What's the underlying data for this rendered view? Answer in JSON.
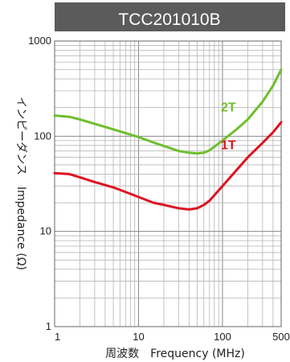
{
  "chart_data": {
    "type": "line",
    "title": "TCC201010B",
    "xlabel": "周波数　Frequency (MHz)",
    "ylabel": "インピーダンス　Impedance (Ω)",
    "x_scale": "log",
    "y_scale": "log",
    "xlim": [
      1,
      500
    ],
    "ylim": [
      1,
      1000
    ],
    "x_ticks": [
      1,
      10,
      100,
      500
    ],
    "y_ticks": [
      1,
      10,
      100,
      1000
    ],
    "x_tick_labels": [
      "1",
      "10",
      "100",
      "500"
    ],
    "y_tick_labels": [
      "1",
      "10",
      "100",
      "1000"
    ],
    "grid": true,
    "series": [
      {
        "name": "2T",
        "color": "#6fbe2e",
        "x": [
          1,
          1.5,
          2,
          3,
          5,
          7,
          10,
          15,
          20,
          30,
          40,
          50,
          60,
          70,
          100,
          150,
          200,
          300,
          400,
          500
        ],
        "y": [
          165,
          160,
          150,
          135,
          118,
          108,
          98,
          86,
          79,
          70,
          67,
          66,
          67,
          71,
          90,
          120,
          150,
          230,
          340,
          500
        ]
      },
      {
        "name": "1T",
        "color": "#dd1321",
        "x": [
          1,
          1.5,
          2,
          3,
          5,
          7,
          10,
          15,
          20,
          30,
          40,
          50,
          60,
          70,
          100,
          150,
          200,
          300,
          400,
          500
        ],
        "y": [
          41,
          40,
          37,
          33,
          29,
          26,
          23,
          20,
          19,
          17.5,
          17,
          17.5,
          19,
          21,
          30,
          45,
          60,
          85,
          110,
          140
        ]
      }
    ]
  }
}
